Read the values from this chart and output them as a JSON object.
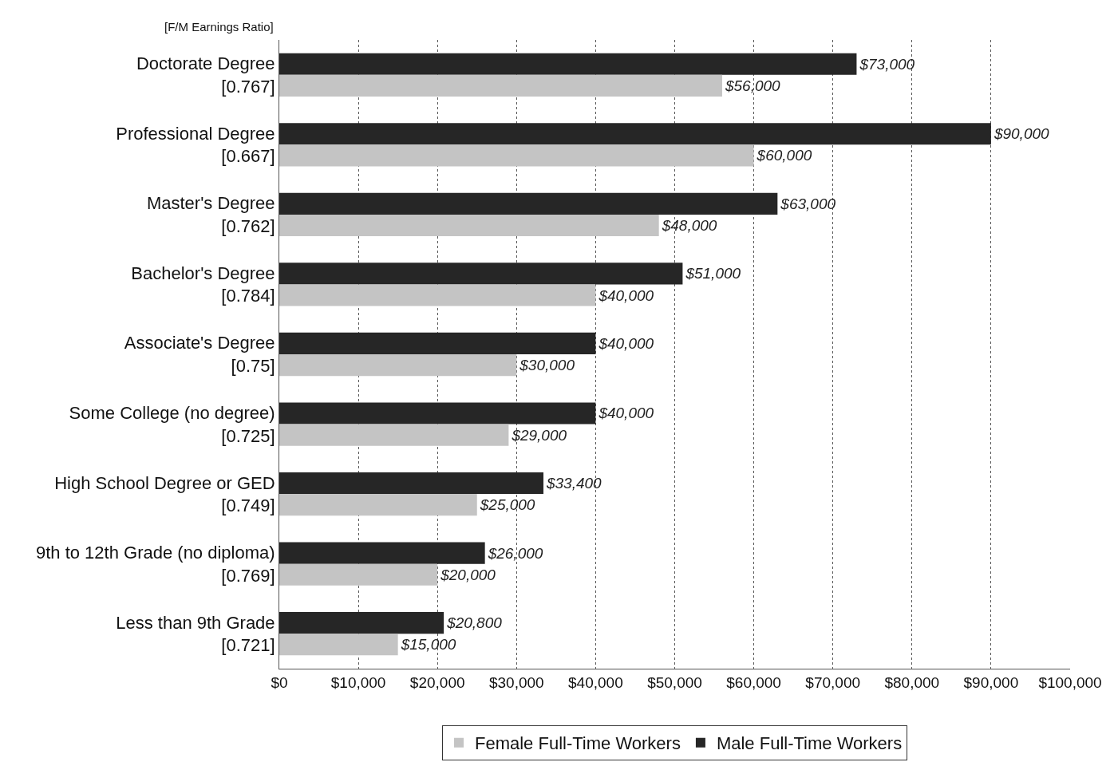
{
  "chart_data": {
    "type": "bar",
    "orientation": "horizontal",
    "categories": [
      "Doctorate Degree\n[0.767]",
      "Professional Degree\n[0.667]",
      "Master's Degree\n[0.762]",
      "Bachelor's Degree\n[0.784]",
      "Associate's Degree\n[0.75]",
      "Some College (no degree)\n[0.725]",
      "High School Degree or GED\n[0.749]",
      "9th to 12th Grade (no diploma)\n[0.769]",
      "Less than 9th Grade\n[0.721]"
    ],
    "series": [
      {
        "name": "Male Full-Time Workers",
        "color": "#262626",
        "values": [
          73000,
          90000,
          63000,
          51000,
          40000,
          40000,
          33400,
          26000,
          20800
        ],
        "value_labels": [
          "$73,000",
          "$90,000",
          "$63,000",
          "$51,000",
          "$40,000",
          "$40,000",
          "$33,400",
          "$26,000",
          "$20,800"
        ]
      },
      {
        "name": "Female Full-Time Workers",
        "color": "#c4c4c4",
        "values": [
          56000,
          60000,
          48000,
          40000,
          30000,
          29000,
          25000,
          20000,
          15000
        ],
        "value_labels": [
          "$56,000",
          "$60,000",
          "$48,000",
          "$40,000",
          "$30,000",
          "$29,000",
          "$25,000",
          "$20,000",
          "$15,000"
        ]
      }
    ],
    "xlim": [
      0,
      100000
    ],
    "xticks": [
      {
        "value": 0,
        "label": "$0"
      },
      {
        "value": 10000,
        "label": "$10,000"
      },
      {
        "value": 20000,
        "label": "$20,000"
      },
      {
        "value": 30000,
        "label": "$30,000"
      },
      {
        "value": 40000,
        "label": "$40,000"
      },
      {
        "value": 50000,
        "label": "$50,000"
      },
      {
        "value": 60000,
        "label": "$60,000"
      },
      {
        "value": 70000,
        "label": "$70,000"
      },
      {
        "value": 80000,
        "label": "$80,000"
      },
      {
        "value": 90000,
        "label": "$90,000"
      },
      {
        "value": 100000,
        "label": "$100,000"
      }
    ],
    "grid": "x",
    "legend": "bottom",
    "annotations": [
      "[F/M Earnings Ratio]"
    ]
  }
}
